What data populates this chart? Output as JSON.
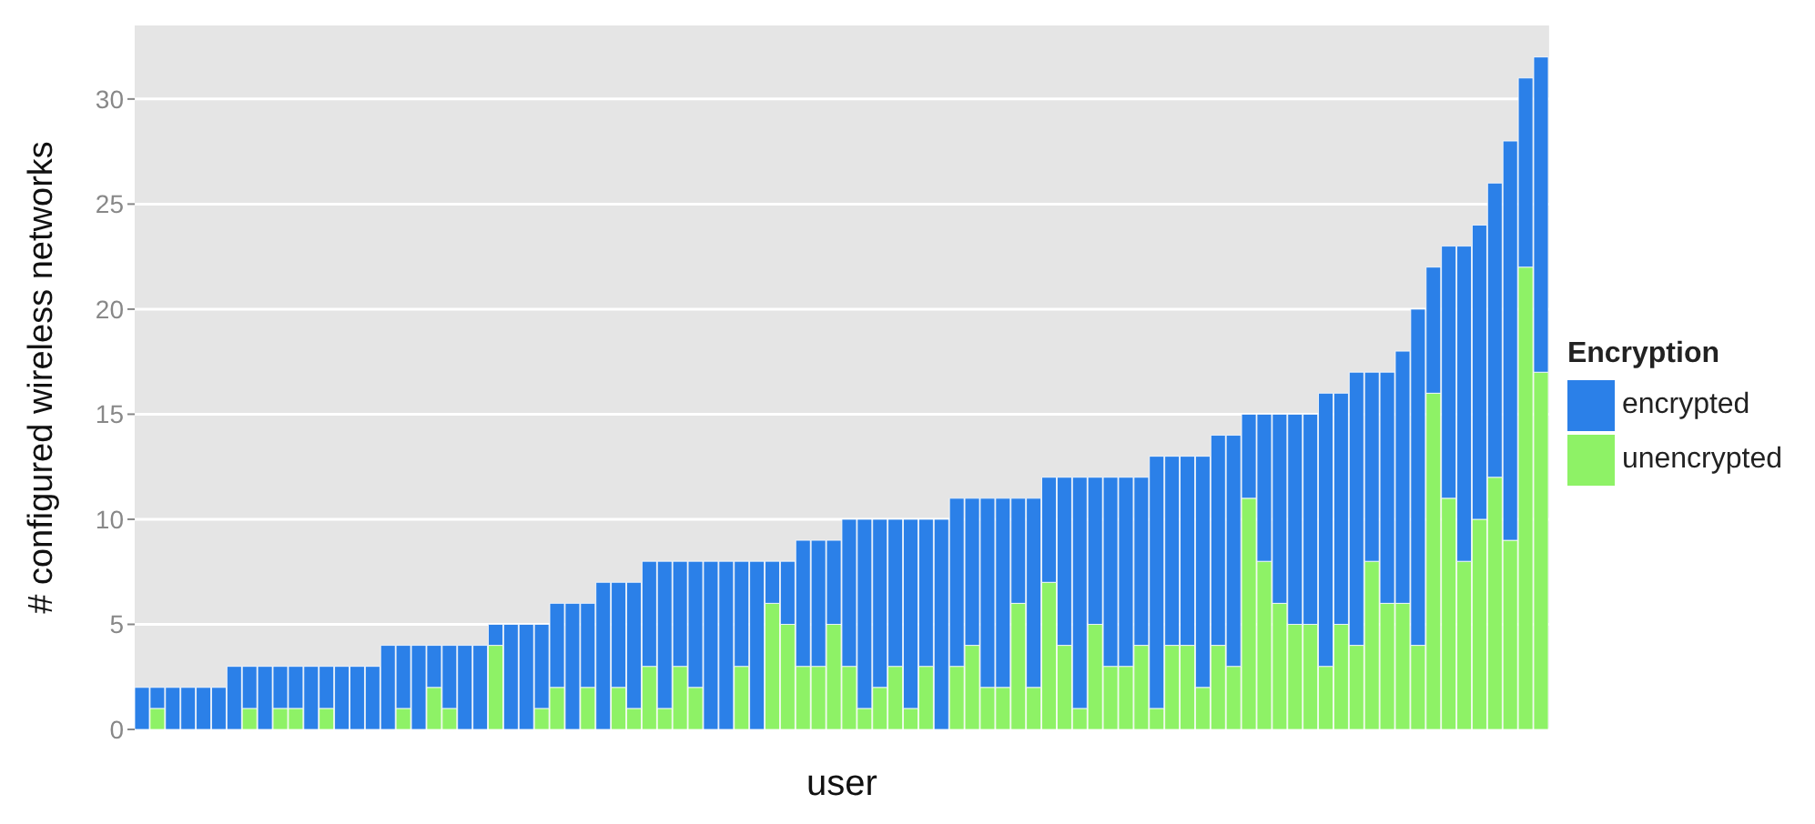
{
  "chart_data": {
    "type": "bar",
    "stacked": true,
    "xlabel": "user",
    "ylabel": "# configured wireless networks",
    "legend_title": "Encryption",
    "legend": "right",
    "grid": "y",
    "ylim": [
      0,
      33.5
    ],
    "yticks": [
      0,
      5,
      10,
      15,
      20,
      25,
      30
    ],
    "categories": [
      null,
      null,
      null,
      null,
      null,
      null,
      null,
      null,
      null,
      null,
      null,
      null,
      null,
      null,
      null,
      null,
      null,
      null,
      null,
      null,
      null,
      null,
      null,
      null,
      null,
      null,
      null,
      null,
      null,
      null,
      null,
      null,
      null,
      null,
      null,
      null,
      null,
      null,
      null,
      null,
      null,
      null,
      null,
      null,
      null,
      null,
      null,
      null,
      null,
      null,
      null,
      null,
      null,
      null,
      null,
      null,
      null,
      null,
      null,
      null,
      null,
      null,
      null,
      null,
      null,
      null,
      null,
      null,
      null,
      null,
      null,
      null,
      null,
      null,
      null,
      null,
      null,
      null,
      null,
      null,
      null,
      null,
      null,
      null,
      null,
      null,
      null,
      null,
      null,
      null,
      null,
      null
    ],
    "series": [
      {
        "name": "unencrypted",
        "color": "#8ef266",
        "values": [
          0,
          1,
          0,
          0,
          0,
          0,
          0,
          1,
          0,
          1,
          1,
          0,
          1,
          0,
          0,
          0,
          0,
          1,
          0,
          2,
          1,
          0,
          0,
          4,
          0,
          0,
          1,
          2,
          0,
          2,
          0,
          2,
          1,
          3,
          1,
          3,
          2,
          0,
          0,
          3,
          0,
          6,
          5,
          3,
          3,
          5,
          3,
          1,
          2,
          3,
          1,
          3,
          0,
          3,
          4,
          2,
          2,
          6,
          2,
          7,
          4,
          1,
          5,
          3,
          3,
          4,
          1,
          4,
          4,
          2,
          4,
          3,
          11,
          8,
          6,
          5,
          5,
          3,
          5,
          4,
          8,
          6,
          6,
          4,
          16,
          11,
          8,
          10,
          12,
          9,
          22,
          17
        ]
      },
      {
        "name": "encrypted",
        "color": "#2b80e8",
        "values": [
          2,
          1,
          2,
          2,
          2,
          2,
          3,
          2,
          3,
          2,
          2,
          3,
          2,
          3,
          3,
          3,
          4,
          3,
          4,
          2,
          3,
          4,
          4,
          1,
          5,
          5,
          4,
          4,
          6,
          4,
          7,
          5,
          6,
          5,
          7,
          5,
          6,
          8,
          8,
          5,
          8,
          2,
          3,
          6,
          6,
          4,
          7,
          9,
          8,
          7,
          9,
          7,
          10,
          8,
          7,
          9,
          9,
          5,
          9,
          5,
          8,
          11,
          7,
          9,
          9,
          8,
          12,
          9,
          9,
          11,
          10,
          11,
          4,
          7,
          9,
          10,
          10,
          13,
          11,
          13,
          9,
          11,
          12,
          16,
          6,
          12,
          15,
          14,
          14,
          19,
          9,
          15
        ]
      }
    ]
  }
}
